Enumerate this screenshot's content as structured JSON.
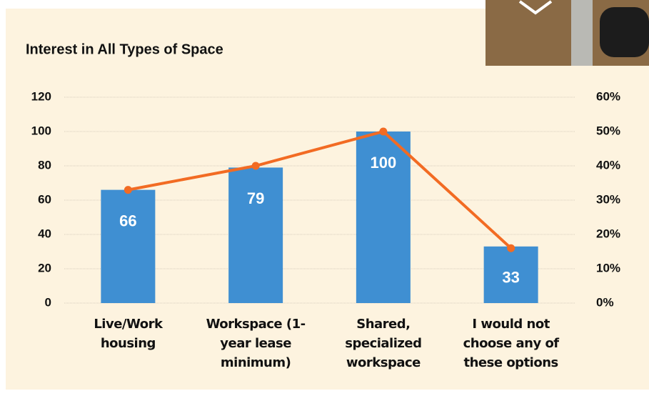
{
  "chart_data": {
    "type": "bar-line",
    "title": "Interest in All Types of Space",
    "categories": [
      "Live/Work housing",
      "Workspace (1-year lease minimum)",
      "Shared, specialized workspace",
      "I would not choose any of these options"
    ],
    "series": [
      {
        "type": "bar",
        "color": "#3f8fd2",
        "values": [
          66,
          79,
          100,
          33
        ]
      },
      {
        "type": "line",
        "axis": "y2",
        "color": "#f26b23",
        "values": [
          33,
          40,
          50,
          16
        ]
      }
    ],
    "ylim": [
      0,
      120
    ],
    "yticks": [
      0,
      20,
      40,
      60,
      80,
      100,
      120
    ],
    "y2lim": [
      0,
      60
    ],
    "y2ticks": [
      {
        "value": 0,
        "label": "0%"
      },
      {
        "value": 10,
        "label": "10%"
      },
      {
        "value": 20,
        "label": "20%"
      },
      {
        "value": 30,
        "label": "30%"
      },
      {
        "value": 40,
        "label": "40%"
      },
      {
        "value": 50,
        "label": "50%"
      },
      {
        "value": 60,
        "label": "60%"
      }
    ],
    "grid": true
  }
}
